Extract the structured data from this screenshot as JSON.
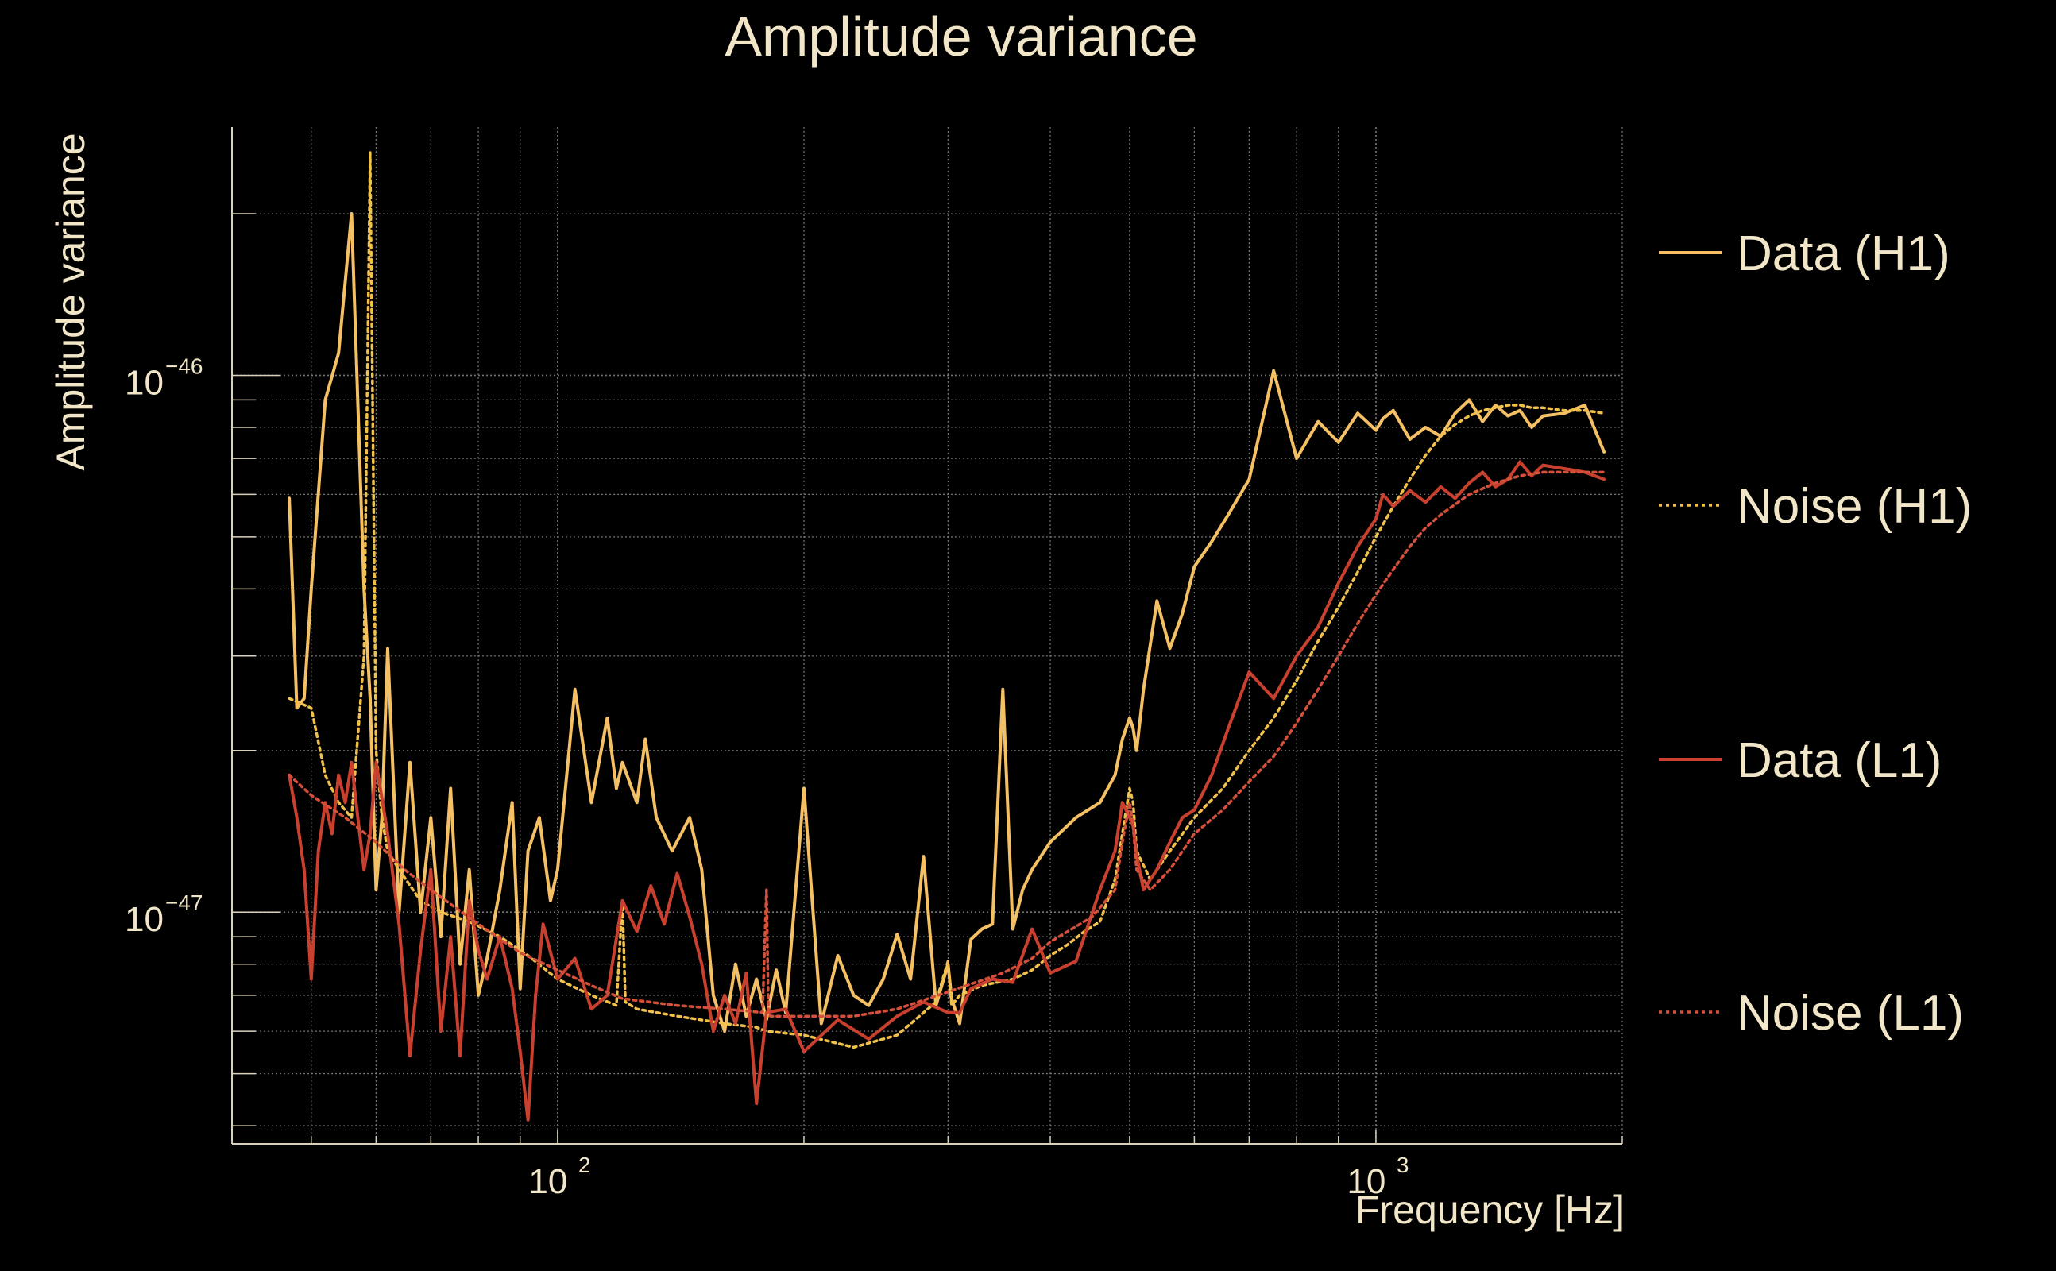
{
  "chart_data": {
    "type": "line",
    "title": "Amplitude variance",
    "xlabel": "Frequency [Hz]",
    "ylabel": "Amplitude variance",
    "xscale": "log",
    "yscale": "log",
    "xlim": [
      40,
      2000
    ],
    "ylim": [
      3.7e-48,
      2.9e-46
    ],
    "grid": true,
    "legend_position": "right",
    "x_ticks": [
      {
        "base": "10",
        "exp": "2",
        "value": 100
      },
      {
        "base": "10",
        "exp": "3",
        "value": 1000
      }
    ],
    "y_ticks": [
      {
        "base": "10",
        "exp": "−46",
        "value": 1e-46
      },
      {
        "base": "10",
        "exp": "−47",
        "value": 1e-47
      }
    ],
    "series": [
      {
        "name": "Data (H1)",
        "color": "#f5c064",
        "dash": "solid",
        "x": [
          47,
          48,
          49,
          50,
          52,
          54,
          56,
          58,
          59,
          60,
          61,
          62,
          64,
          66,
          68,
          70,
          72,
          74,
          76,
          78,
          80,
          82,
          85,
          88,
          90,
          92,
          95,
          98,
          100,
          105,
          110,
          115,
          118,
          120,
          125,
          128,
          132,
          138,
          145,
          150,
          155,
          160,
          165,
          170,
          175,
          180,
          185,
          190,
          200,
          210,
          220,
          230,
          240,
          250,
          260,
          270,
          280,
          290,
          300,
          303,
          310,
          320,
          330,
          340,
          350,
          360,
          370,
          380,
          400,
          430,
          460,
          480,
          490,
          500,
          505,
          510,
          520,
          540,
          560,
          580,
          600,
          630,
          660,
          700,
          750,
          800,
          850,
          900,
          950,
          1000,
          1020,
          1050,
          1100,
          1150,
          1200,
          1250,
          1300,
          1350,
          1400,
          1450,
          1500,
          1550,
          1600,
          1700,
          1800,
          1900
        ],
        "y": [
          5.9e-47,
          2.4e-47,
          2.5e-47,
          4e-47,
          9e-47,
          1.1e-46,
          2e-46,
          4e-47,
          2.5e-47,
          1.1e-47,
          1.5e-47,
          3.1e-47,
          1e-47,
          1.9e-47,
          1e-47,
          1.5e-47,
          9e-48,
          1.7e-47,
          8e-48,
          1.2e-47,
          7e-48,
          8.2e-48,
          1.1e-47,
          1.6e-47,
          7.2e-48,
          1.3e-47,
          1.5e-47,
          1.05e-47,
          1.2e-47,
          2.6e-47,
          1.6e-47,
          2.3e-47,
          1.7e-47,
          1.9e-47,
          1.6e-47,
          2.1e-47,
          1.5e-47,
          1.3e-47,
          1.5e-47,
          1.2e-47,
          7e-48,
          6e-48,
          8e-48,
          6.4e-48,
          7.5e-48,
          6.3e-48,
          7.8e-48,
          6.5e-48,
          1.7e-47,
          6.2e-48,
          8.3e-48,
          7e-48,
          6.7e-48,
          7.5e-48,
          9.1e-48,
          7.5e-48,
          1.27e-47,
          6.7e-48,
          8e-48,
          6.9e-48,
          6.2e-48,
          8.9e-48,
          9.3e-48,
          9.5e-48,
          2.6e-47,
          9.3e-48,
          1.1e-47,
          1.2e-47,
          1.35e-47,
          1.5e-47,
          1.6e-47,
          1.8e-47,
          2.1e-47,
          2.3e-47,
          2.2e-47,
          2e-47,
          2.6e-47,
          3.8e-47,
          3.1e-47,
          3.6e-47,
          4.4e-47,
          4.9e-47,
          5.5e-47,
          6.4e-47,
          1.02e-46,
          7e-47,
          8.2e-47,
          7.5e-47,
          8.5e-47,
          7.9e-47,
          8.3e-47,
          8.6e-47,
          7.6e-47,
          8e-47,
          7.7e-47,
          8.5e-47,
          9e-47,
          8.2e-47,
          8.8e-47,
          8.4e-47,
          8.6e-47,
          8e-47,
          8.4e-47,
          8.5e-47,
          8.8e-47,
          7.2e-47
        ]
      },
      {
        "name": "Noise (H1)",
        "color": "#f0c04a",
        "dash": "dotted",
        "x": [
          47,
          50,
          52,
          54,
          56,
          58,
          59,
          60,
          61,
          62,
          64,
          68,
          72,
          78,
          85,
          92,
          100,
          110,
          118,
          120,
          121,
          125,
          140,
          160,
          175,
          180,
          200,
          230,
          260,
          290,
          300,
          303,
          310,
          330,
          360,
          380,
          400,
          420,
          440,
          460,
          480,
          490,
          500,
          505,
          510,
          530,
          560,
          600,
          650,
          700,
          750,
          800,
          850,
          900,
          950,
          1000,
          1050,
          1100,
          1150,
          1200,
          1250,
          1300,
          1350,
          1400,
          1450,
          1500,
          1550,
          1600,
          1700,
          1800,
          1900
        ],
        "y": [
          2.5e-47,
          2.4e-47,
          1.8e-47,
          1.6e-47,
          1.5e-47,
          3e-47,
          2.6e-46,
          2e-47,
          1.5e-47,
          1.3e-47,
          1.2e-47,
          1.05e-47,
          1e-47,
          9.6e-48,
          9e-48,
          8.3e-48,
          7.5e-48,
          7e-48,
          6.7e-48,
          1.05e-47,
          6.8e-48,
          6.6e-48,
          6.4e-48,
          6.2e-48,
          6.1e-48,
          6e-48,
          5.9e-48,
          5.6e-48,
          5.9e-48,
          6.8e-48,
          8.1e-48,
          6.7e-48,
          7e-48,
          7.3e-48,
          7.5e-48,
          7.8e-48,
          8.3e-48,
          8.7e-48,
          9.2e-48,
          9.6e-48,
          1.15e-47,
          1.4e-47,
          1.7e-47,
          1.6e-47,
          1.3e-47,
          1.15e-47,
          1.3e-47,
          1.5e-47,
          1.7e-47,
          2e-47,
          2.3e-47,
          2.7e-47,
          3.2e-47,
          3.7e-47,
          4.3e-47,
          5e-47,
          5.7e-47,
          6.4e-47,
          7.1e-47,
          7.7e-47,
          8.1e-47,
          8.4e-47,
          8.6e-47,
          8.7e-47,
          8.8e-47,
          8.8e-47,
          8.7e-47,
          8.7e-47,
          8.6e-47,
          8.6e-47,
          8.5e-47
        ]
      },
      {
        "name": "Data (L1)",
        "color": "#c9402e",
        "dash": "solid",
        "x": [
          47,
          48,
          49,
          50,
          51,
          52,
          53,
          54,
          55,
          56,
          57,
          58,
          59,
          60,
          62,
          64,
          66,
          68,
          70,
          72,
          74,
          76,
          78,
          80,
          82,
          85,
          88,
          90,
          92,
          94,
          96,
          100,
          105,
          110,
          115,
          120,
          125,
          130,
          135,
          140,
          145,
          150,
          155,
          160,
          165,
          170,
          175,
          180,
          190,
          200,
          220,
          240,
          260,
          280,
          300,
          310,
          320,
          340,
          360,
          380,
          400,
          430,
          460,
          480,
          490,
          500,
          505,
          510,
          520,
          540,
          560,
          580,
          600,
          630,
          660,
          700,
          750,
          800,
          850,
          900,
          950,
          1000,
          1020,
          1050,
          1100,
          1150,
          1200,
          1250,
          1300,
          1350,
          1400,
          1450,
          1500,
          1550,
          1600,
          1700,
          1800,
          1900
        ],
        "y": [
          1.8e-47,
          1.5e-47,
          1.2e-47,
          7.5e-48,
          1.3e-47,
          1.6e-47,
          1.4e-47,
          1.8e-47,
          1.6e-47,
          1.9e-47,
          1.5e-47,
          1.2e-47,
          1.4e-47,
          1.9e-47,
          1.4e-47,
          9.5e-48,
          5.4e-48,
          8.5e-48,
          1.2e-47,
          6e-48,
          9e-48,
          5.4e-48,
          1.05e-47,
          8.5e-48,
          7.5e-48,
          9e-48,
          7.2e-48,
          5.5e-48,
          4.1e-48,
          7e-48,
          9.5e-48,
          7.5e-48,
          8.2e-48,
          6.6e-48,
          7e-48,
          1.05e-47,
          9.2e-48,
          1.12e-47,
          9.5e-48,
          1.18e-47,
          9.8e-48,
          8e-48,
          6e-48,
          7e-48,
          6.2e-48,
          7.7e-48,
          4.4e-48,
          6.5e-48,
          6.6e-48,
          5.5e-48,
          6.3e-48,
          5.8e-48,
          6.4e-48,
          6.8e-48,
          6.5e-48,
          6.5e-48,
          7.2e-48,
          7.5e-48,
          7.4e-48,
          9.3e-48,
          7.7e-48,
          8.1e-48,
          1.1e-47,
          1.3e-47,
          1.6e-47,
          1.5e-47,
          1.45e-47,
          1.28e-47,
          1.1e-47,
          1.2e-47,
          1.35e-47,
          1.5e-47,
          1.55e-47,
          1.8e-47,
          2.2e-47,
          2.8e-47,
          2.5e-47,
          3e-47,
          3.4e-47,
          4.1e-47,
          4.8e-47,
          5.4e-47,
          6e-47,
          5.7e-47,
          6.1e-47,
          5.8e-47,
          6.2e-47,
          5.9e-47,
          6.3e-47,
          6.6e-47,
          6.2e-47,
          6.4e-47,
          6.9e-47,
          6.5e-47,
          6.8e-47,
          6.7e-47,
          6.6e-47,
          6.4e-47
        ]
      },
      {
        "name": "Noise (L1)",
        "color": "#d4503a",
        "dash": "dotted",
        "x": [
          47,
          50,
          55,
          60,
          65,
          70,
          80,
          90,
          100,
          110,
          120,
          140,
          160,
          178,
          180,
          181,
          182,
          200,
          230,
          260,
          300,
          350,
          380,
          400,
          450,
          480,
          490,
          500,
          505,
          510,
          530,
          560,
          600,
          650,
          700,
          750,
          800,
          850,
          900,
          950,
          1000,
          1050,
          1100,
          1150,
          1200,
          1300,
          1400,
          1500,
          1600,
          1700,
          1800,
          1900
        ],
        "y": [
          1.8e-47,
          1.65e-47,
          1.5e-47,
          1.35e-47,
          1.2e-47,
          1.1e-47,
          9.5e-48,
          8.4e-48,
          7.8e-48,
          7.3e-48,
          6.9e-48,
          6.7e-48,
          6.6e-48,
          6.5e-48,
          1.1e-47,
          6.5e-48,
          6.4e-48,
          6.4e-48,
          6.4e-48,
          6.6e-48,
          7.1e-48,
          7.7e-48,
          8.2e-48,
          8.8e-48,
          9.8e-48,
          1.1e-47,
          1.35e-47,
          1.6e-47,
          1.45e-47,
          1.2e-47,
          1.1e-47,
          1.2e-47,
          1.4e-47,
          1.55e-47,
          1.75e-47,
          1.95e-47,
          2.25e-47,
          2.6e-47,
          3e-47,
          3.45e-47,
          3.9e-47,
          4.35e-47,
          4.8e-47,
          5.2e-47,
          5.5e-47,
          6e-47,
          6.3e-47,
          6.5e-47,
          6.6e-47,
          6.6e-47,
          6.6e-47,
          6.6e-47
        ]
      }
    ]
  }
}
